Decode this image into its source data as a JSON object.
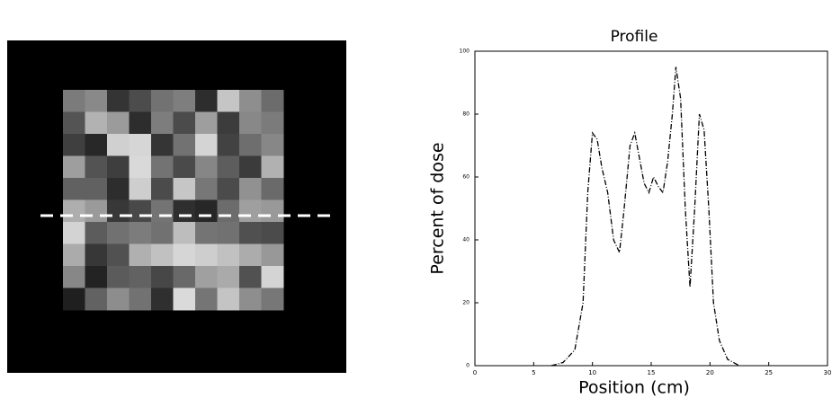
{
  "chart_data": {
    "type": "line",
    "title": "Profile",
    "x_label": "Position (cm)",
    "y_label": "Percent of dose",
    "x": [
      6.5,
      7.5,
      8.5,
      9.2,
      9.6,
      10,
      10.4,
      10.8,
      11.3,
      11.8,
      12.3,
      12.7,
      13.2,
      13.6,
      14,
      14.4,
      14.8,
      15.2,
      15.6,
      16,
      16.4,
      16.8,
      17.1,
      17.5,
      17.9,
      18.3,
      18.7,
      19.1,
      19.5,
      19.9,
      20.3,
      20.8,
      21.5,
      22.5
    ],
    "values": [
      0,
      1,
      5,
      20,
      55,
      74,
      72,
      63,
      55,
      40,
      36,
      50,
      70,
      74,
      66,
      58,
      55,
      60,
      57,
      55,
      65,
      80,
      95,
      85,
      50,
      25,
      50,
      80,
      75,
      50,
      20,
      8,
      2,
      0
    ],
    "color": "#000000",
    "xlim": [
      0,
      30
    ],
    "xticks": [
      0,
      5,
      10,
      15,
      20,
      25,
      30
    ],
    "ylim": [
      0,
      100
    ],
    "yticks": [
      0,
      20,
      40,
      60,
      80,
      100
    ]
  }
}
